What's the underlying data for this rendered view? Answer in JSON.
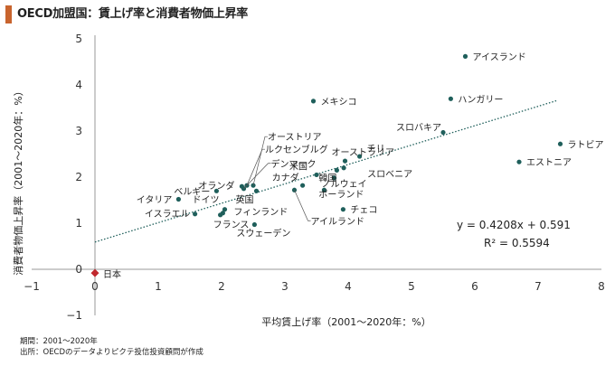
{
  "title": "OECD加盟国：賃上げ率と消費者物価上昇率",
  "notes": [
    "期間：2001～2020年",
    "出所：OECDのデータよりピクテ投信投資顧問が作成"
  ],
  "colors": {
    "accent": "#c8642e",
    "points": "#1f5f5b",
    "highlight": "#c0282d",
    "trendline": "#1f5f5b"
  },
  "chart_data": {
    "type": "scatter",
    "title": "OECD加盟国：賃上げ率と消費者物価上昇率",
    "xlabel": "平均賃上げ率（2001～2020年：%）",
    "ylabel": "消費者物価上昇率（2001～2020年：%）",
    "xlim": [
      -1,
      8
    ],
    "ylim": [
      -1,
      5
    ],
    "xticks": [
      -1,
      0,
      1,
      2,
      3,
      4,
      5,
      6,
      7,
      8
    ],
    "yticks": [
      -1,
      0,
      1,
      2,
      3,
      4,
      5
    ],
    "grid": false,
    "points": [
      {
        "name": "アイスランド",
        "x": 5.85,
        "y": 4.62
      },
      {
        "name": "ハンガリー",
        "x": 5.62,
        "y": 3.7
      },
      {
        "name": "メキシコ",
        "x": 3.45,
        "y": 3.65
      },
      {
        "name": "スロバキア",
        "x": 5.5,
        "y": 2.97
      },
      {
        "name": "ラトビア",
        "x": 7.35,
        "y": 2.72
      },
      {
        "name": "エストニア",
        "x": 6.7,
        "y": 2.33
      },
      {
        "name": "チリ",
        "x": 4.18,
        "y": 2.45
      },
      {
        "name": "オーストラリア",
        "x": 3.95,
        "y": 2.35
      },
      {
        "name": "スロベニア",
        "x": 3.93,
        "y": 2.2
      },
      {
        "name": "韓国",
        "x": 3.82,
        "y": 2.15
      },
      {
        "name": "米国",
        "x": 3.5,
        "y": 2.05
      },
      {
        "name": "ノルウェイ",
        "x": 3.78,
        "y": 1.98
      },
      {
        "name": "カナダ",
        "x": 3.28,
        "y": 1.82
      },
      {
        "name": "ポーランド",
        "x": 3.62,
        "y": 1.72
      },
      {
        "name": "アイルランド",
        "x": 3.15,
        "y": 1.72
      },
      {
        "name": "チェコ",
        "x": 3.92,
        "y": 1.3
      },
      {
        "name": "オーストリア",
        "x": 2.5,
        "y": 1.82
      },
      {
        "name": "ルクセンブルグ",
        "x": 2.4,
        "y": 1.82
      },
      {
        "name": "デンマーク",
        "x": 2.35,
        "y": 1.75
      },
      {
        "name": "オランダ",
        "x": 2.32,
        "y": 1.8
      },
      {
        "name": "英国",
        "x": 2.55,
        "y": 1.7
      },
      {
        "name": "ベルギー",
        "x": 1.92,
        "y": 1.7
      },
      {
        "name": "イタリア",
        "x": 1.32,
        "y": 1.52
      },
      {
        "name": "ドイツ",
        "x": 2.05,
        "y": 1.3
      },
      {
        "name": "フィンランド",
        "x": 2.02,
        "y": 1.22
      },
      {
        "name": "イスラエル",
        "x": 1.58,
        "y": 1.2
      },
      {
        "name": "フランス",
        "x": 1.98,
        "y": 1.18
      },
      {
        "name": "スウェーデン",
        "x": 2.52,
        "y": 0.97
      },
      {
        "name": "日本",
        "x": 0.0,
        "y": -0.08,
        "highlight": true
      }
    ],
    "trendline": {
      "slope": 0.4208,
      "intercept": 0.591,
      "x_range": [
        0,
        7.3
      ]
    },
    "equation": "y = 0.4208x + 0.591",
    "r_squared": "R² = 0.5594"
  }
}
